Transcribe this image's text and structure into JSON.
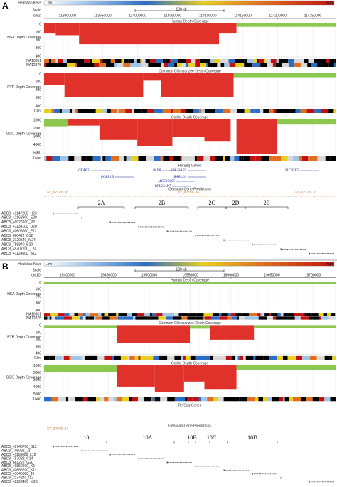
{
  "panels": [
    {
      "letter": "A",
      "heatmap": {
        "title": "HeatMap Keys",
        "low": "Low",
        "high": "High"
      },
      "scale": {
        "label": "Scale",
        "bar": "100 kb",
        "chrom": "chr2:",
        "positions": [
          "113900000",
          "113950000",
          "114000000",
          "114050000",
          "114100000",
          "114150000",
          "114200000",
          "114250000"
        ]
      },
      "tracks": [
        {
          "title": "Human Depth Coverage",
          "label": "HSA Depth Coverage",
          "ticks": [
            "0",
            "100",
            "200",
            "300",
            "400"
          ]
        },
        {
          "title": "Common Chimpanzee Depth Coverage",
          "label": "PTR Depth Coverage",
          "ticks": [
            "0",
            "100",
            "200",
            "300",
            "400"
          ]
        },
        {
          "title": "Gorilla Depth Coverage",
          "label": "GGO Depth Coverage",
          "ticks": [
            "1000",
            "2000",
            "3000",
            "4000",
            "5000"
          ]
        }
      ],
      "samples": {
        "human": [
          "NA10851",
          "NA12878"
        ],
        "chimp": "Clint",
        "gorilla": "Kwan"
      },
      "genes": {
        "title": "RefSeq Genes",
        "names": [
          "CKAP2L",
          "POLR1B",
          "PAX8",
          "RPL23AP7",
          "RABL2A",
          "MGC13005",
          "RPL23AP7",
          "SLC35F5"
        ]
      },
      "genscan": {
        "title": "Genscan Gene Predictions",
        "names": [
          "NT_022135.16",
          "NT_022135.16",
          "NT_022135.16"
        ]
      },
      "segments": [
        "2A",
        "2B",
        "2C",
        "2D",
        "2E"
      ],
      "clones": [
        "ABC8_41147200_H23",
        "ABC8_42163800_E20",
        "ABC8_40926200_P2",
        "ABC8_41134100_D20",
        "ABC8_40603600_F12",
        "ABC8_660422_B12",
        "ABC8_2129540_M24",
        "ABC8_758840_B20",
        "ABC8_45707700_L24",
        "ABC8_41124600_B12"
      ]
    },
    {
      "letter": "B",
      "heatmap": {
        "title": "HeatMap Keys",
        "low": "Low",
        "high": "High"
      },
      "scale": {
        "label": "Scale",
        "bar": "100 kb",
        "chrom": "chr10:",
        "positions": [
          "19400000",
          "19450000",
          "19500000",
          "19550000",
          "19600000",
          "19650000",
          "19700000"
        ]
      },
      "tracks": [
        {
          "title": "Human Depth Coverage",
          "label": "HSA Depth Coverage",
          "ticks": [
            "0",
            "100",
            "200",
            "300",
            "400"
          ]
        },
        {
          "title": "Common Chimpanzee Depth Coverage",
          "label": "PTR Depth Coverage",
          "ticks": [
            "0",
            "100",
            "200",
            "300",
            "400"
          ]
        },
        {
          "title": "Gorilla Depth Coverage",
          "label": "GGO Depth Coverage",
          "ticks": [
            "1000",
            "2000",
            "3000",
            "4000",
            "5000"
          ]
        }
      ],
      "samples": {
        "human": [
          "NA10851",
          "NA12878"
        ],
        "chimp": "Clint",
        "gorilla": "Kwan"
      },
      "genes": {
        "title": "RefSeq Genes",
        "names": []
      },
      "genscan": {
        "title": "Genscan Gene Predictions",
        "names": [
          "NT_008705.17"
        ]
      },
      "segments": [
        "10t",
        "10A",
        "10B",
        "10C",
        "10D"
      ],
      "clones": [
        "ABC8_42746700_B12",
        "ABC8_708022_J3",
        "ABC8_41110000_L12",
        "ABC8_757022_C14",
        "ABC8_661222_G20",
        "ABC8_40850600_K5",
        "ABC8_40868200_K11",
        "ABC8_41045000_J9",
        "ABC8_2134240_I12",
        "ABC8_42229400_M23"
      ]
    }
  ]
}
